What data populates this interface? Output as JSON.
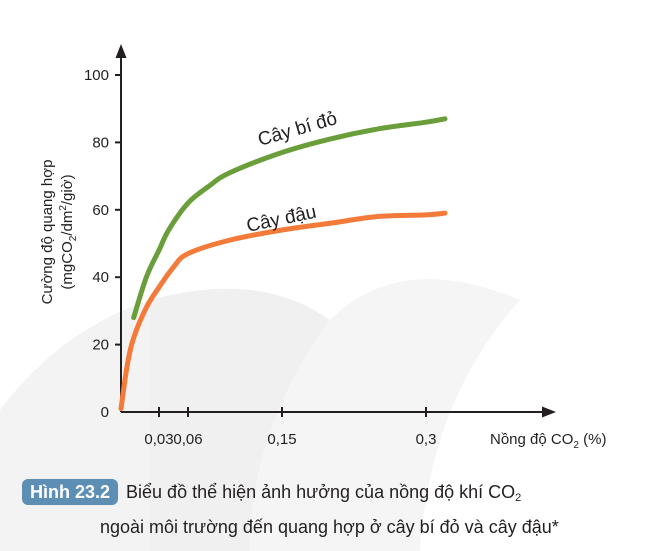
{
  "chart_data": {
    "type": "line",
    "xlabel": "Nồng độ CO",
    "xlabel_sub": "2",
    "xlabel_unit": " (%)",
    "ylabel_line1": "Cường độ quang hợp",
    "ylabel_line2_a": "(mgCO",
    "ylabel_line2_sub": "2",
    "ylabel_line2_b": "/dm",
    "ylabel_line2_sup": "2",
    "ylabel_line2_c": "/giờ)",
    "x_ticks": [
      "0,03",
      "0,06",
      "0,15",
      "0,3"
    ],
    "y_ticks": [
      "0",
      "20",
      "40",
      "60",
      "80",
      "100"
    ],
    "ylim": [
      0,
      100
    ],
    "series": [
      {
        "name": "Cây bí đỏ",
        "color": "#6a9e3b",
        "points": [
          [
            0.01,
            28
          ],
          [
            0.02,
            40
          ],
          [
            0.03,
            48
          ],
          [
            0.04,
            54
          ],
          [
            0.06,
            62
          ],
          [
            0.08,
            67
          ],
          [
            0.1,
            71
          ],
          [
            0.15,
            77
          ],
          [
            0.2,
            81
          ],
          [
            0.25,
            84
          ],
          [
            0.3,
            86
          ],
          [
            0.34,
            87
          ]
        ]
      },
      {
        "name": "Cây đậu",
        "color": "#f47a3a",
        "points": [
          [
            0,
            1
          ],
          [
            0.005,
            14
          ],
          [
            0.01,
            22
          ],
          [
            0.02,
            31
          ],
          [
            0.03,
            37
          ],
          [
            0.045,
            43
          ],
          [
            0.06,
            47
          ],
          [
            0.1,
            51
          ],
          [
            0.15,
            54
          ],
          [
            0.2,
            56
          ],
          [
            0.25,
            58
          ],
          [
            0.3,
            58.5
          ],
          [
            0.34,
            59
          ]
        ]
      }
    ]
  },
  "caption": {
    "badge": "Hình 23.2",
    "text_a": "Biểu đồ thể hiện ảnh hưởng của nồng độ khí CO",
    "text_sub": "2",
    "text_b": "ngoài môi trường đến quang hợp ở cây bí đỏ và cây đậu*"
  }
}
